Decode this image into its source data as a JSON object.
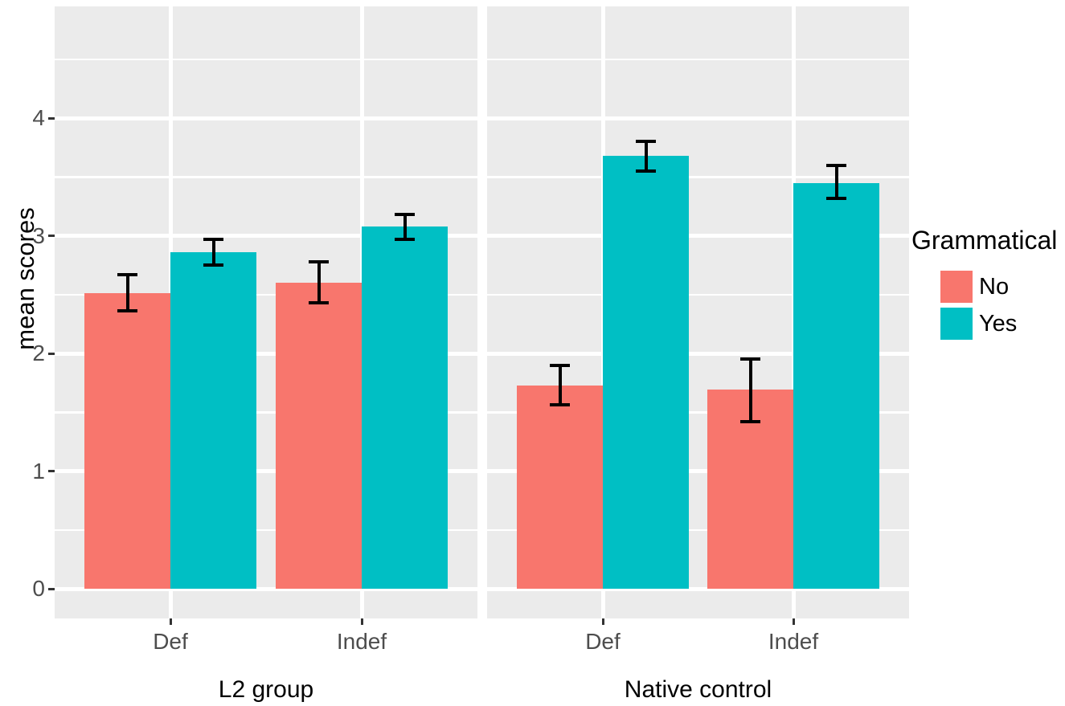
{
  "chart_data": {
    "type": "bar",
    "title": "",
    "ylabel": "mean scores",
    "xlabel": "",
    "legend": {
      "title": "Grammatical",
      "position": "right",
      "entries": [
        "No",
        "Yes"
      ]
    },
    "series": [
      {
        "name": "No",
        "color": "#F8766D"
      },
      {
        "name": "Yes",
        "color": "#00BFC4"
      }
    ],
    "y_axis": {
      "ticks": [
        0,
        1,
        2,
        3,
        4
      ],
      "range": [
        -0.25,
        4.95
      ],
      "grid_major": [
        0,
        1,
        2,
        3,
        4
      ],
      "grid_minor": [
        0.5,
        1.5,
        2.5,
        3.5,
        4.5
      ]
    },
    "facets": [
      {
        "label": "L2 group",
        "categories": [
          "Def",
          "Indef"
        ],
        "bars": [
          {
            "category": "Def",
            "series": "No",
            "value": 2.51,
            "err_low": 2.36,
            "err_high": 2.67
          },
          {
            "category": "Def",
            "series": "Yes",
            "value": 2.86,
            "err_low": 2.75,
            "err_high": 2.97
          },
          {
            "category": "Indef",
            "series": "No",
            "value": 2.6,
            "err_low": 2.43,
            "err_high": 2.78
          },
          {
            "category": "Indef",
            "series": "Yes",
            "value": 3.08,
            "err_low": 2.97,
            "err_high": 3.18
          }
        ]
      },
      {
        "label": "Native control",
        "categories": [
          "Def",
          "Indef"
        ],
        "bars": [
          {
            "category": "Def",
            "series": "No",
            "value": 1.73,
            "err_low": 1.56,
            "err_high": 1.9
          },
          {
            "category": "Def",
            "series": "Yes",
            "value": 3.68,
            "err_low": 3.55,
            "err_high": 3.8
          },
          {
            "category": "Indef",
            "series": "No",
            "value": 1.69,
            "err_low": 1.42,
            "err_high": 1.95
          },
          {
            "category": "Indef",
            "series": "Yes",
            "value": 3.45,
            "err_low": 3.32,
            "err_high": 3.6
          }
        ]
      }
    ],
    "colors": {
      "panel_background": "#EBEBEB",
      "grid": "#FFFFFF",
      "tick_label": "#4D4D4D",
      "axis_title": "#000000",
      "errorbar": "#000000"
    }
  }
}
